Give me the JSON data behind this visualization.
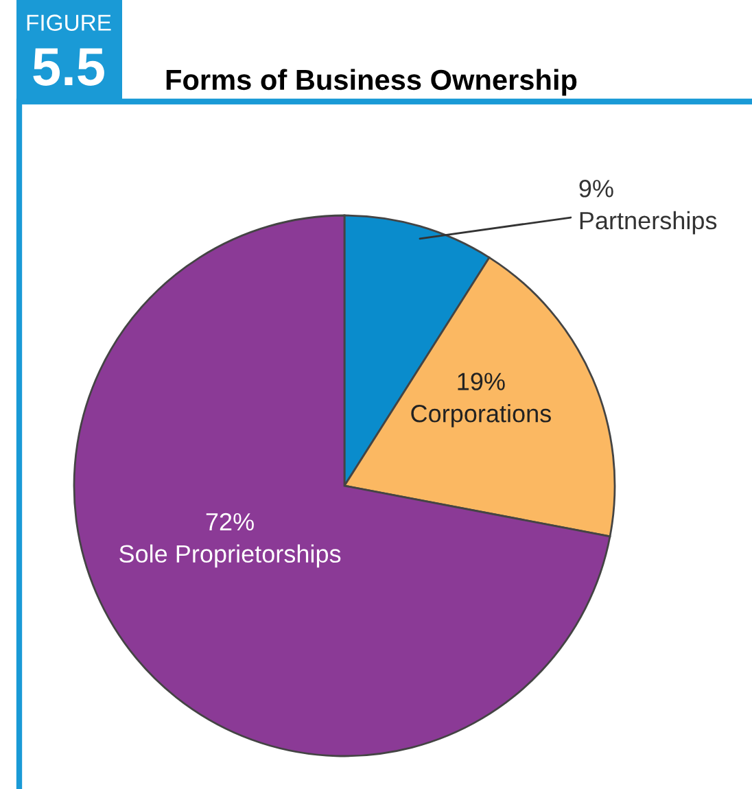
{
  "chart_data": {
    "type": "pie",
    "title": "Forms of Business Ownership",
    "annotations": [
      "FIGURE",
      "5.5"
    ],
    "categories": [
      "Partnerships",
      "Corporations",
      "Sole Proprietorships"
    ],
    "values": [
      9,
      19,
      72
    ],
    "value_labels": [
      "9%",
      "19%",
      "72%"
    ],
    "colors": [
      "#0a8ccc",
      "#fbb862",
      "#8b3a96"
    ]
  }
}
